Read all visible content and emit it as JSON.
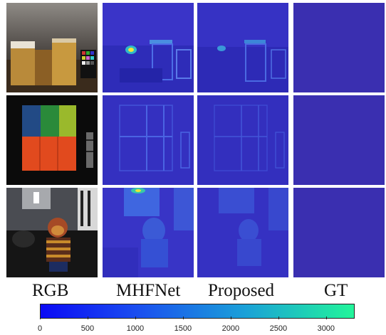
{
  "figure": {
    "column_labels": [
      "RGB",
      "MHFNet",
      "Proposed",
      "GT"
    ],
    "colorbar": {
      "min": 0,
      "max": 3300,
      "ticks": [
        "0",
        "500",
        "1000",
        "1500",
        "2000",
        "2500",
        "3000"
      ],
      "tick_values": [
        0,
        500,
        1000,
        1500,
        2000,
        2500,
        3000
      ],
      "colormap": "blue-to-green",
      "color_low": "#0a0af5",
      "color_high": "#22f59a"
    },
    "background_color": "#3a2fb0"
  }
}
